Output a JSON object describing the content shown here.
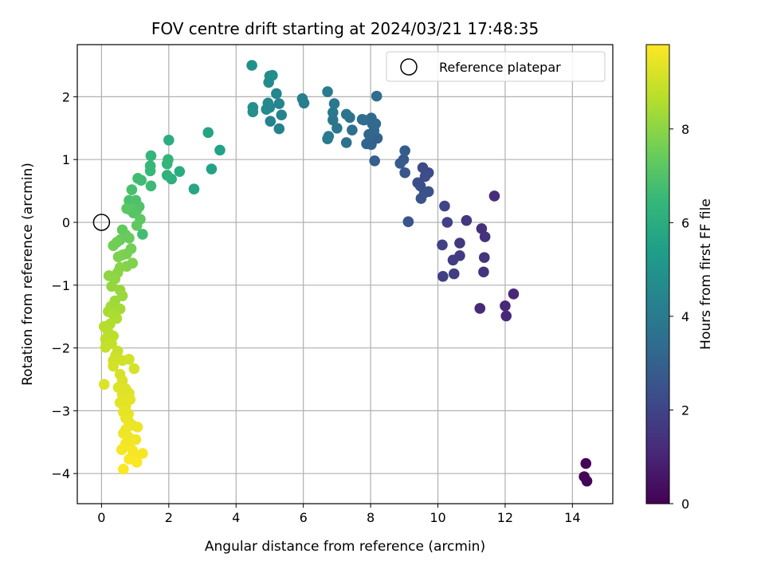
{
  "chart_data": {
    "type": "scatter",
    "title": "FOV centre drift starting at 2024/03/21 17:48:35",
    "xlabel": "Angular distance from reference (arcmin)",
    "ylabel": "Rotation from reference (arcmin)",
    "xlim": [
      -0.72,
      15.2
    ],
    "ylim": [
      -4.48,
      2.83
    ],
    "xticks": [
      "0",
      "2",
      "4",
      "6",
      "8",
      "10",
      "12",
      "14"
    ],
    "xtick_values": [
      0,
      2,
      4,
      6,
      8,
      10,
      12,
      14
    ],
    "yticks": [
      "2",
      "1",
      "0",
      "−1",
      "−2",
      "−3",
      "−4"
    ],
    "ytick_values": [
      2,
      1,
      0,
      -1,
      -2,
      -3,
      -4
    ],
    "grid": true,
    "legend": {
      "position": "top-right",
      "entries": [
        "Reference platepar"
      ]
    },
    "reference_point": {
      "name": "Reference platepar",
      "x": 0,
      "y": 0
    },
    "colorbar": {
      "label": "Hours from first FF file",
      "range": [
        0,
        9.8
      ],
      "ticks": [
        "0",
        "2",
        "4",
        "6",
        "8"
      ],
      "tick_values": [
        0,
        2,
        4,
        6,
        8
      ],
      "colormap": [
        "#440154",
        "#482878",
        "#3e4989",
        "#31688e",
        "#26828e",
        "#1f9e89",
        "#35b779",
        "#6ece58",
        "#b5de2b",
        "#fde725"
      ]
    },
    "points": [
      {
        "x": 14.4,
        "y": -3.84,
        "h": 0.05
      },
      {
        "x": 14.35,
        "y": -4.05,
        "h": 0.08
      },
      {
        "x": 14.43,
        "y": -4.12,
        "h": 0.12
      },
      {
        "x": 12.25,
        "y": -1.14,
        "h": 1.05
      },
      {
        "x": 12.0,
        "y": -1.33,
        "h": 1.08
      },
      {
        "x": 12.03,
        "y": -1.49,
        "h": 1.12
      },
      {
        "x": 11.25,
        "y": -1.37,
        "h": 1.18
      },
      {
        "x": 11.68,
        "y": 0.42,
        "h": 1.25
      },
      {
        "x": 11.3,
        "y": -0.1,
        "h": 1.35
      },
      {
        "x": 11.4,
        "y": -0.23,
        "h": 1.4
      },
      {
        "x": 11.38,
        "y": -0.56,
        "h": 1.45
      },
      {
        "x": 11.36,
        "y": -0.79,
        "h": 1.5
      },
      {
        "x": 10.85,
        "y": 0.03,
        "h": 1.6
      },
      {
        "x": 10.65,
        "y": -0.33,
        "h": 1.65
      },
      {
        "x": 10.65,
        "y": -0.53,
        "h": 1.7
      },
      {
        "x": 10.45,
        "y": -0.6,
        "h": 1.75
      },
      {
        "x": 10.48,
        "y": -0.82,
        "h": 1.8
      },
      {
        "x": 10.15,
        "y": -0.86,
        "h": 1.85
      },
      {
        "x": 10.13,
        "y": -0.36,
        "h": 1.9
      },
      {
        "x": 10.28,
        "y": 0.0,
        "h": 1.95
      },
      {
        "x": 10.2,
        "y": 0.26,
        "h": 2.0
      },
      {
        "x": 9.72,
        "y": 0.79,
        "h": 2.2
      },
      {
        "x": 9.55,
        "y": 0.87,
        "h": 2.25
      },
      {
        "x": 9.62,
        "y": 0.73,
        "h": 2.3
      },
      {
        "x": 9.4,
        "y": 0.63,
        "h": 2.35
      },
      {
        "x": 9.48,
        "y": 0.58,
        "h": 2.4
      },
      {
        "x": 9.6,
        "y": 0.47,
        "h": 2.45
      },
      {
        "x": 9.72,
        "y": 0.49,
        "h": 2.5
      },
      {
        "x": 9.5,
        "y": 0.38,
        "h": 2.55
      },
      {
        "x": 9.12,
        "y": 0.01,
        "h": 2.6
      },
      {
        "x": 9.02,
        "y": 0.79,
        "h": 2.7
      },
      {
        "x": 8.98,
        "y": 1.0,
        "h": 2.75
      },
      {
        "x": 8.88,
        "y": 0.94,
        "h": 2.8
      },
      {
        "x": 9.02,
        "y": 1.14,
        "h": 2.85
      },
      {
        "x": 8.12,
        "y": 0.98,
        "h": 3.0
      },
      {
        "x": 8.2,
        "y": 1.34,
        "h": 3.05
      },
      {
        "x": 8.02,
        "y": 1.24,
        "h": 3.1
      },
      {
        "x": 7.88,
        "y": 1.25,
        "h": 3.15
      },
      {
        "x": 7.95,
        "y": 1.4,
        "h": 3.2
      },
      {
        "x": 8.1,
        "y": 1.46,
        "h": 3.25
      },
      {
        "x": 8.05,
        "y": 1.57,
        "h": 3.3
      },
      {
        "x": 8.15,
        "y": 1.57,
        "h": 3.35
      },
      {
        "x": 8.02,
        "y": 1.66,
        "h": 3.4
      },
      {
        "x": 7.8,
        "y": 1.63,
        "h": 3.45
      },
      {
        "x": 7.75,
        "y": 1.64,
        "h": 3.5
      },
      {
        "x": 8.18,
        "y": 2.01,
        "h": 3.55
      },
      {
        "x": 7.45,
        "y": 1.47,
        "h": 3.6
      },
      {
        "x": 7.28,
        "y": 1.27,
        "h": 3.65
      },
      {
        "x": 7.38,
        "y": 1.67,
        "h": 3.7
      },
      {
        "x": 7.28,
        "y": 1.72,
        "h": 3.75
      },
      {
        "x": 7.0,
        "y": 1.5,
        "h": 3.8
      },
      {
        "x": 6.88,
        "y": 1.63,
        "h": 3.85
      },
      {
        "x": 6.88,
        "y": 1.75,
        "h": 3.9
      },
      {
        "x": 6.92,
        "y": 1.89,
        "h": 3.95
      },
      {
        "x": 6.72,
        "y": 1.33,
        "h": 4.0
      },
      {
        "x": 6.75,
        "y": 1.37,
        "h": 4.05
      },
      {
        "x": 6.72,
        "y": 2.08,
        "h": 4.1
      },
      {
        "x": 6.02,
        "y": 1.9,
        "h": 4.2
      },
      {
        "x": 5.97,
        "y": 1.97,
        "h": 4.25
      },
      {
        "x": 5.35,
        "y": 1.71,
        "h": 4.3
      },
      {
        "x": 5.28,
        "y": 1.49,
        "h": 4.35
      },
      {
        "x": 5.02,
        "y": 1.61,
        "h": 4.4
      },
      {
        "x": 5.28,
        "y": 1.89,
        "h": 4.45
      },
      {
        "x": 5.2,
        "y": 2.05,
        "h": 4.5
      },
      {
        "x": 5.0,
        "y": 1.83,
        "h": 4.55
      },
      {
        "x": 4.95,
        "y": 1.9,
        "h": 4.6
      },
      {
        "x": 4.9,
        "y": 1.8,
        "h": 4.65
      },
      {
        "x": 4.97,
        "y": 2.23,
        "h": 4.7
      },
      {
        "x": 5.0,
        "y": 2.33,
        "h": 4.75
      },
      {
        "x": 5.08,
        "y": 2.34,
        "h": 4.8
      },
      {
        "x": 4.5,
        "y": 1.83,
        "h": 4.85
      },
      {
        "x": 4.5,
        "y": 1.76,
        "h": 4.9
      },
      {
        "x": 4.47,
        "y": 2.5,
        "h": 4.95
      },
      {
        "x": 3.52,
        "y": 1.15,
        "h": 5.6
      },
      {
        "x": 3.27,
        "y": 0.85,
        "h": 5.65
      },
      {
        "x": 3.17,
        "y": 1.43,
        "h": 5.7
      },
      {
        "x": 2.75,
        "y": 0.53,
        "h": 5.8
      },
      {
        "x": 2.32,
        "y": 0.81,
        "h": 6.0
      },
      {
        "x": 2.0,
        "y": 1.31,
        "h": 6.1
      },
      {
        "x": 2.08,
        "y": 0.69,
        "h": 6.2
      },
      {
        "x": 1.95,
        "y": 0.75,
        "h": 6.3
      },
      {
        "x": 1.95,
        "y": 0.93,
        "h": 6.4
      },
      {
        "x": 1.98,
        "y": 1.0,
        "h": 6.45
      },
      {
        "x": 1.47,
        "y": 1.06,
        "h": 6.5
      },
      {
        "x": 1.45,
        "y": 0.9,
        "h": 6.55
      },
      {
        "x": 1.45,
        "y": 0.82,
        "h": 6.6
      },
      {
        "x": 1.47,
        "y": 0.58,
        "h": 6.65
      },
      {
        "x": 1.18,
        "y": 0.67,
        "h": 6.7
      },
      {
        "x": 1.08,
        "y": 0.7,
        "h": 6.75
      },
      {
        "x": 1.22,
        "y": -0.19,
        "h": 6.8
      },
      {
        "x": 0.9,
        "y": 0.52,
        "h": 6.9
      },
      {
        "x": 0.82,
        "y": 0.35,
        "h": 6.95
      },
      {
        "x": 1.02,
        "y": 0.35,
        "h": 7.0
      },
      {
        "x": 1.12,
        "y": 0.25,
        "h": 7.05
      },
      {
        "x": 1.05,
        "y": 0.2,
        "h": 7.1
      },
      {
        "x": 0.95,
        "y": 0.15,
        "h": 7.15
      },
      {
        "x": 0.85,
        "y": 0.2,
        "h": 7.2
      },
      {
        "x": 0.75,
        "y": 0.22,
        "h": 7.25
      },
      {
        "x": 1.15,
        "y": 0.05,
        "h": 7.3
      },
      {
        "x": 1.05,
        "y": -0.05,
        "h": 7.35
      },
      {
        "x": 0.62,
        "y": -0.12,
        "h": 7.4
      },
      {
        "x": 0.72,
        "y": -0.2,
        "h": 7.45
      },
      {
        "x": 0.82,
        "y": -0.25,
        "h": 7.5
      },
      {
        "x": 0.55,
        "y": -0.28,
        "h": 7.55
      },
      {
        "x": 0.45,
        "y": -0.32,
        "h": 7.6
      },
      {
        "x": 0.35,
        "y": -0.37,
        "h": 7.65
      },
      {
        "x": 0.88,
        "y": -0.42,
        "h": 7.7
      },
      {
        "x": 0.75,
        "y": -0.5,
        "h": 7.75
      },
      {
        "x": 0.62,
        "y": -0.52,
        "h": 7.8
      },
      {
        "x": 0.5,
        "y": -0.55,
        "h": 7.85
      },
      {
        "x": 0.92,
        "y": -0.65,
        "h": 7.9
      },
      {
        "x": 0.75,
        "y": -0.7,
        "h": 7.95
      },
      {
        "x": 0.55,
        "y": -0.72,
        "h": 8.0
      },
      {
        "x": 0.48,
        "y": -0.8,
        "h": 8.05
      },
      {
        "x": 0.22,
        "y": -0.85,
        "h": 8.1
      },
      {
        "x": 0.4,
        "y": -0.9,
        "h": 8.15
      },
      {
        "x": 0.3,
        "y": -1.02,
        "h": 8.2
      },
      {
        "x": 0.55,
        "y": -1.08,
        "h": 8.25
      },
      {
        "x": 0.62,
        "y": -1.17,
        "h": 8.3
      },
      {
        "x": 0.4,
        "y": -1.25,
        "h": 8.35
      },
      {
        "x": 0.28,
        "y": -1.34,
        "h": 8.4
      },
      {
        "x": 0.55,
        "y": -1.38,
        "h": 8.45
      },
      {
        "x": 0.2,
        "y": -1.42,
        "h": 8.5
      },
      {
        "x": 0.35,
        "y": -1.47,
        "h": 8.55
      },
      {
        "x": 0.45,
        "y": -1.53,
        "h": 8.6
      },
      {
        "x": 0.25,
        "y": -1.62,
        "h": 8.65
      },
      {
        "x": 0.08,
        "y": -1.66,
        "h": 8.7
      },
      {
        "x": 0.2,
        "y": -1.75,
        "h": 8.75
      },
      {
        "x": 0.35,
        "y": -1.81,
        "h": 8.8
      },
      {
        "x": 0.12,
        "y": -1.86,
        "h": 8.85
      },
      {
        "x": 0.3,
        "y": -1.93,
        "h": 8.9
      },
      {
        "x": 0.12,
        "y": -1.99,
        "h": 8.95
      },
      {
        "x": 0.48,
        "y": -2.05,
        "h": 9.0
      },
      {
        "x": 0.42,
        "y": -2.12,
        "h": 9.05
      },
      {
        "x": 0.35,
        "y": -2.2,
        "h": 9.1
      },
      {
        "x": 0.62,
        "y": -2.2,
        "h": 9.12
      },
      {
        "x": 0.82,
        "y": -2.18,
        "h": 9.14
      },
      {
        "x": 0.35,
        "y": -2.29,
        "h": 9.16
      },
      {
        "x": 0.97,
        "y": -2.33,
        "h": 9.18
      },
      {
        "x": 0.55,
        "y": -2.42,
        "h": 9.2
      },
      {
        "x": 0.62,
        "y": -2.52,
        "h": 9.25
      },
      {
        "x": 0.08,
        "y": -2.58,
        "h": 9.28
      },
      {
        "x": 0.5,
        "y": -2.63,
        "h": 9.3
      },
      {
        "x": 0.72,
        "y": -2.65,
        "h": 9.32
      },
      {
        "x": 0.82,
        "y": -2.72,
        "h": 9.34
      },
      {
        "x": 0.62,
        "y": -2.75,
        "h": 9.36
      },
      {
        "x": 0.85,
        "y": -2.82,
        "h": 9.38
      },
      {
        "x": 0.55,
        "y": -2.87,
        "h": 9.4
      },
      {
        "x": 0.72,
        "y": -2.92,
        "h": 9.42
      },
      {
        "x": 0.65,
        "y": -3.02,
        "h": 9.44
      },
      {
        "x": 0.8,
        "y": -3.05,
        "h": 9.46
      },
      {
        "x": 0.72,
        "y": -3.12,
        "h": 9.48
      },
      {
        "x": 0.82,
        "y": -3.18,
        "h": 9.5
      },
      {
        "x": 0.92,
        "y": -3.23,
        "h": 9.52
      },
      {
        "x": 1.07,
        "y": -3.26,
        "h": 9.54
      },
      {
        "x": 0.72,
        "y": -3.3,
        "h": 9.56
      },
      {
        "x": 0.65,
        "y": -3.36,
        "h": 9.58
      },
      {
        "x": 0.8,
        "y": -3.42,
        "h": 9.6
      },
      {
        "x": 1.02,
        "y": -3.46,
        "h": 9.62
      },
      {
        "x": 0.85,
        "y": -3.5,
        "h": 9.64
      },
      {
        "x": 0.72,
        "y": -3.52,
        "h": 9.66
      },
      {
        "x": 0.6,
        "y": -3.62,
        "h": 9.68
      },
      {
        "x": 0.92,
        "y": -3.63,
        "h": 9.7
      },
      {
        "x": 1.22,
        "y": -3.68,
        "h": 9.72
      },
      {
        "x": 1.05,
        "y": -3.72,
        "h": 9.73
      },
      {
        "x": 0.82,
        "y": -3.77,
        "h": 9.74
      },
      {
        "x": 1.05,
        "y": -3.82,
        "h": 9.75
      },
      {
        "x": 0.65,
        "y": -3.93,
        "h": 9.76
      }
    ]
  }
}
